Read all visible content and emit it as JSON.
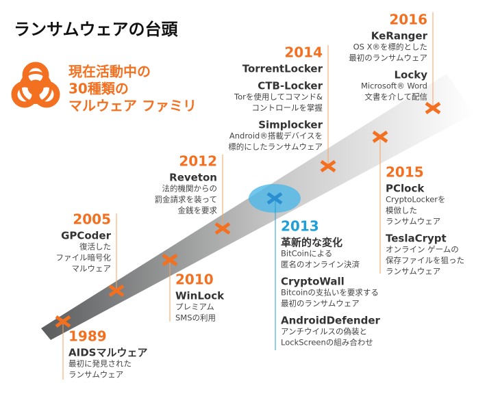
{
  "header": {
    "title": "ランサムウェアの台頭"
  },
  "callout": {
    "lines": [
      "現在活動中の",
      "30種類の",
      "マルウェア ファミリ"
    ]
  },
  "events": [
    {
      "year": "1989",
      "entries": [
        {
          "name": "AIDSマルウェア",
          "description": [
            "最初に発見された",
            "ランサムウェア"
          ]
        }
      ]
    },
    {
      "year": "2005",
      "entries": [
        {
          "name": "GPCoder",
          "description": [
            "復活した",
            "ファイル暗号化",
            "マルウェア"
          ]
        }
      ]
    },
    {
      "year": "2010",
      "entries": [
        {
          "name": "WinLock",
          "description": [
            "プレミアム",
            "SMSの利用"
          ]
        }
      ]
    },
    {
      "year": "2012",
      "entries": [
        {
          "name": "Reveton",
          "description": [
            "法的機関からの",
            "罰金請求を装って",
            "金銭を要求"
          ]
        }
      ]
    },
    {
      "year": "2013",
      "entries": [
        {
          "name": "革新的な変化",
          "description": [
            "BitCoinによる",
            "匿名のオンライン決済"
          ]
        },
        {
          "name": "CryptoWall",
          "description": [
            "Bitcoinの支払いを要求する",
            "最初のランサムウェア"
          ]
        },
        {
          "name": "AndroidDefender",
          "description": [
            "アンチウイルスの偽装と",
            "LockScreenの組み合わせ"
          ]
        }
      ]
    },
    {
      "year": "2014",
      "entries": [
        {
          "name": "TorrentLocker",
          "description": []
        },
        {
          "name": "CTB-Locker",
          "description": [
            "Torを使用してコマンド&",
            "コントロールを掌握"
          ]
        },
        {
          "name": "Simplocker",
          "description": [
            "Android®搭載デバイスを",
            "標的にしたランサムウェア"
          ]
        }
      ]
    },
    {
      "year": "2015",
      "entries": [
        {
          "name": "PClock",
          "description": [
            "CryptoLockerを",
            "模倣した",
            "ランサムウェア"
          ]
        },
        {
          "name": "TeslaCrypt",
          "description": [
            "オンライン ゲームの",
            "保存ファイルを狙った",
            "ランサムウェア"
          ]
        }
      ]
    },
    {
      "year": "2016",
      "entries": [
        {
          "name": "KeRanger",
          "description": [
            "OS X®を標的とした",
            "最初のランサムウェア"
          ]
        },
        {
          "name": "Locky",
          "description": [
            "Microsoft® Word",
            "文書を介して配信"
          ]
        }
      ]
    }
  ]
}
